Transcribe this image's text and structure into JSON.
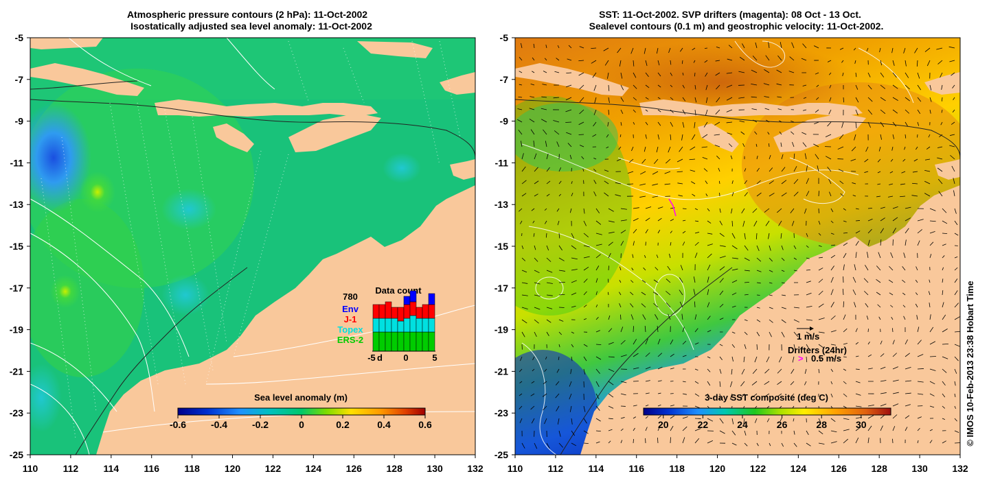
{
  "left_panel": {
    "title_line1": "Atmospheric pressure contours (2 hPa): 11-Oct-2002",
    "title_line2": "Isostatically adjusted sea level anomaly: 11-Oct-2002",
    "x_ticks": [
      "110",
      "112",
      "114",
      "116",
      "118",
      "120",
      "122",
      "124",
      "126",
      "128",
      "130",
      "132"
    ],
    "y_ticks": [
      "-5",
      "-7",
      "-9",
      "-11",
      "-13",
      "-15",
      "-17",
      "-19",
      "-21",
      "-23",
      "-25"
    ],
    "colorbar": {
      "label": "Sea level anomaly (m)",
      "ticks": [
        "-0.6",
        "-0.4",
        "-0.2",
        "0",
        "0.2",
        "0.4",
        "0.6"
      ],
      "min": -0.6,
      "max": 0.6
    },
    "data_count": {
      "title": "Data count",
      "max_label": "780",
      "legend": [
        {
          "name": "Env",
          "color": "#0000ff"
        },
        {
          "name": "J-1",
          "color": "#ff0000"
        },
        {
          "name": "Topex",
          "color": "#00e0e0"
        },
        {
          "name": "ERS-2",
          "color": "#00cc00"
        }
      ],
      "x_ticks": [
        "-5",
        "d",
        "0",
        "5"
      ],
      "bars": [
        {
          "ers2": 0.35,
          "topex": 0.25,
          "j1": 0.25,
          "env": 0
        },
        {
          "ers2": 0.35,
          "topex": 0.25,
          "j1": 0.25,
          "env": 0
        },
        {
          "ers2": 0.35,
          "topex": 0.25,
          "j1": 0.3,
          "env": 0
        },
        {
          "ers2": 0.35,
          "topex": 0.25,
          "j1": 0.2,
          "env": 0
        },
        {
          "ers2": 0.35,
          "topex": 0.2,
          "j1": 0.25,
          "env": 0
        },
        {
          "ers2": 0.35,
          "topex": 0.25,
          "j1": 0.25,
          "env": 0.15
        },
        {
          "ers2": 0.35,
          "topex": 0.3,
          "j1": 0.25,
          "env": 0.2
        },
        {
          "ers2": 0.35,
          "topex": 0.25,
          "j1": 0.2,
          "env": 0
        },
        {
          "ers2": 0.35,
          "topex": 0.25,
          "j1": 0.25,
          "env": 0
        },
        {
          "ers2": 0.35,
          "topex": 0.25,
          "j1": 0.25,
          "env": 0.2
        }
      ]
    }
  },
  "right_panel": {
    "title_line1": "SST: 11-Oct-2002. SVP drifters (magenta): 08 Oct - 13 Oct.",
    "title_line2": "Sealevel contours (0.1 m) and geostrophic velocity: 11-Oct-2002.",
    "x_ticks": [
      "110",
      "112",
      "114",
      "116",
      "118",
      "120",
      "122",
      "124",
      "126",
      "128",
      "130",
      "132"
    ],
    "y_ticks": [
      "-5",
      "-7",
      "-9",
      "-11",
      "-13",
      "-15",
      "-17",
      "-19",
      "-21",
      "-23",
      "-25"
    ],
    "colorbar": {
      "label": "3-day SST composite (deg C)",
      "ticks": [
        "20",
        "22",
        "24",
        "26",
        "28",
        "30"
      ],
      "min": 19,
      "max": 31.5
    },
    "velocity_key": "1 m/s",
    "drifters_label": "Drifters (24hr)",
    "drifters_speed": "0.5 m/s",
    "credit": "© IMOS 10-Feb-2013 23:38 Hobart Time"
  },
  "colors": {
    "land": "#f9c89b",
    "slanomaly_ocean": "#19c27a",
    "sst_warm": "#e88a10",
    "sst_cool": "#1e4fd0",
    "magenta": "#ff00ff"
  }
}
